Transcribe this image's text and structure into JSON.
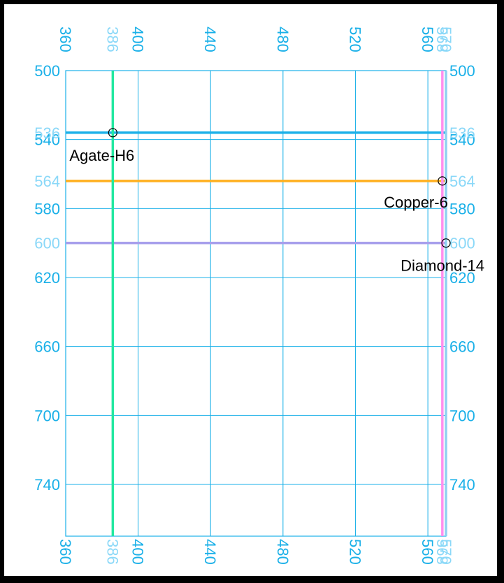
{
  "chart_data": {
    "type": "scatter",
    "title": "",
    "xlabel": "",
    "ylabel": "",
    "xlim": [
      360,
      570
    ],
    "ylim": [
      500,
      770
    ],
    "y_inverted": true,
    "grid": true,
    "x_ticks": [
      360,
      400,
      440,
      480,
      520,
      560
    ],
    "y_ticks": [
      500,
      540,
      580,
      620,
      660,
      700,
      740
    ],
    "marker_x_ticks": [
      386,
      568,
      570
    ],
    "marker_y_ticks": [
      536,
      564,
      600
    ],
    "vertical_lines": [
      {
        "x": 386,
        "color": "#22e8a0"
      },
      {
        "x": 568,
        "color": "#ff90ee"
      },
      {
        "x": 570,
        "color": "#8fd0f0"
      }
    ],
    "horizontal_lines": [
      {
        "y": 536,
        "color": "#1ab0e8"
      },
      {
        "y": 564,
        "color": "#ffb020"
      },
      {
        "y": 600,
        "color": "#a8a0ec"
      }
    ],
    "points": [
      {
        "label": "Agate-H6",
        "x": 386,
        "y": 536
      },
      {
        "label": "Copper-6",
        "x": 568,
        "y": 564
      },
      {
        "label": "Diamond-14",
        "x": 570,
        "y": 600
      }
    ],
    "colors": {
      "grid": "#1ab0e8",
      "tick_text": "#1ab0e8",
      "marker_tick_text": "#8ad8f8",
      "label_text": "#000000"
    }
  }
}
